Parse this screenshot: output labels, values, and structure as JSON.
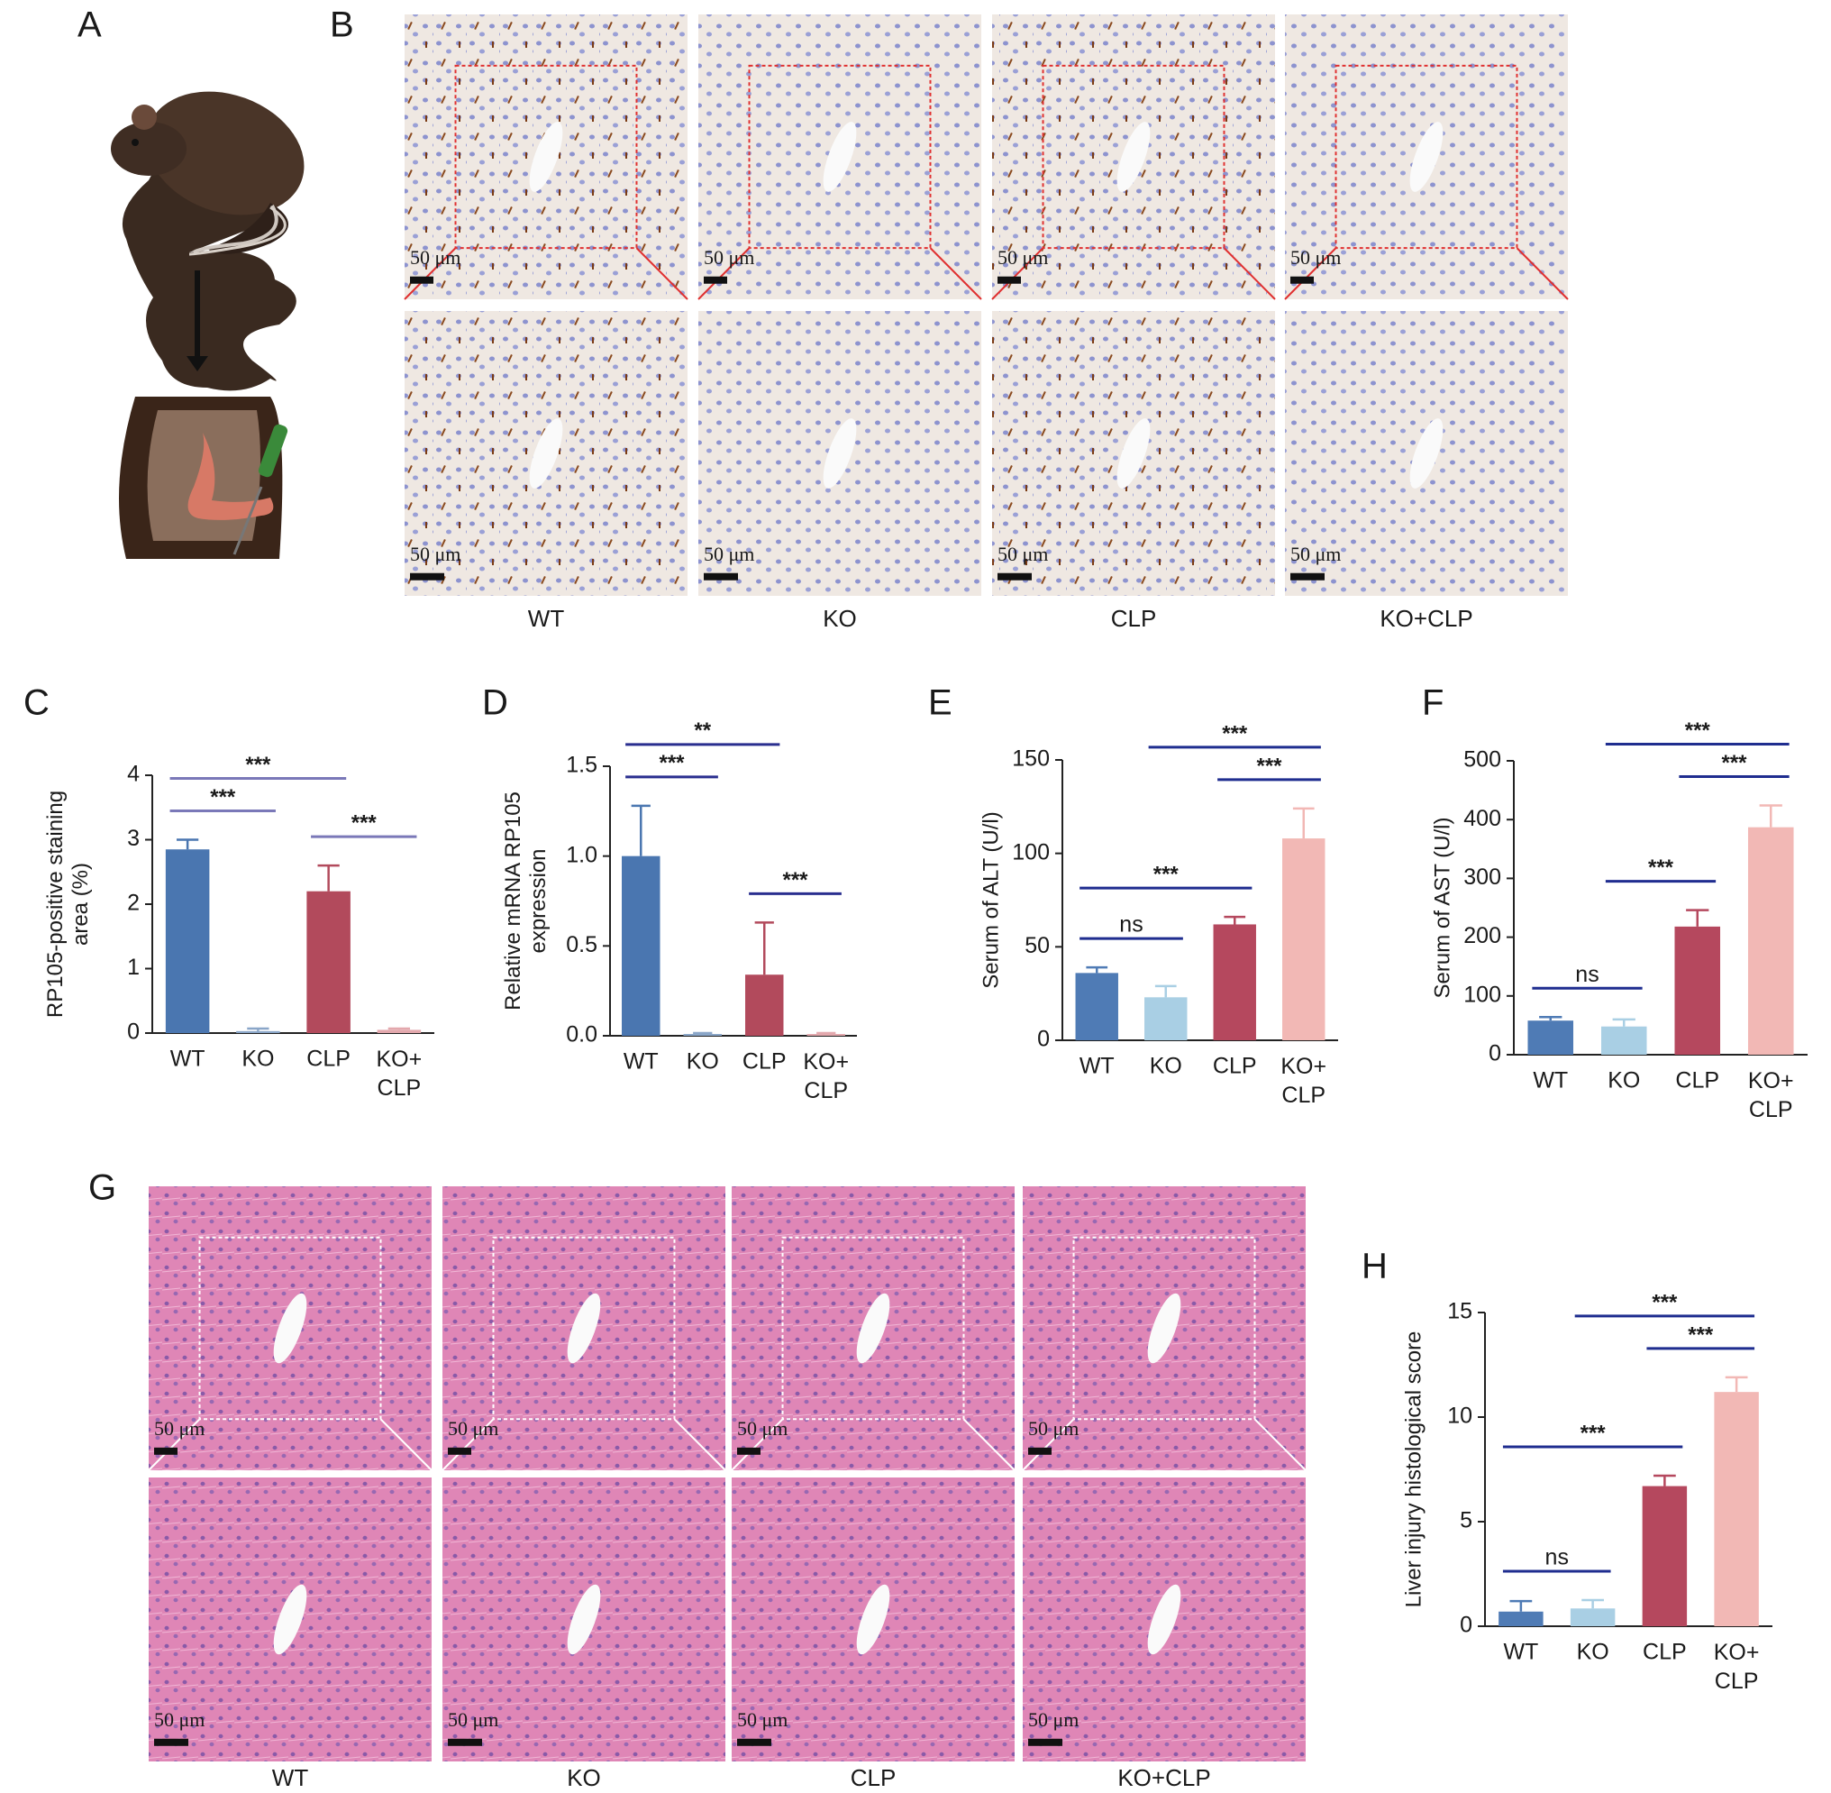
{
  "figure": {
    "panel_labels": [
      "A",
      "B",
      "G"
    ],
    "ihc_groups": [
      "WT",
      "KO",
      "CLP",
      "KO+CLP"
    ],
    "he_groups": [
      "WT",
      "KO",
      "CLP",
      "KO+CLP"
    ],
    "scale_bar": "50 μm"
  },
  "chart_data": [
    {
      "type": "bar",
      "panel": "C",
      "ylabel": "RP105-positive staining\narea (%)",
      "categories": [
        "WT",
        "KO",
        "CLP",
        "KO+\nCLP"
      ],
      "values": [
        2.85,
        0.03,
        2.2,
        0.05
      ],
      "errors": [
        0.15,
        0.04,
        0.4,
        0.02
      ],
      "colors": [
        "#4a76b0",
        "#8aa6c8",
        "#b24a5c",
        "#e3a8ad"
      ],
      "ylim": [
        0,
        4
      ],
      "yticks": [
        0,
        1,
        2,
        3,
        4
      ],
      "significance": [
        {
          "between": [
            0,
            1
          ],
          "label": "***"
        },
        {
          "between": [
            0,
            2
          ],
          "label": "***"
        },
        {
          "between": [
            2,
            3
          ],
          "label": "***"
        }
      ],
      "sig_color": "#7a78b8"
    },
    {
      "type": "bar",
      "panel": "D",
      "ylabel": "Relative mRNA RP105\nexpression",
      "categories": [
        "WT",
        "KO",
        "CLP",
        "KO+\nCLP"
      ],
      "values": [
        1.0,
        0.01,
        0.34,
        0.01
      ],
      "errors": [
        0.28,
        0.005,
        0.29,
        0.005
      ],
      "colors": [
        "#4a76b0",
        "#8aa6c8",
        "#b24a5c",
        "#e3a8ad"
      ],
      "ylim": [
        0,
        1.5
      ],
      "yticks": [
        {
          "value": 0,
          "label": "0.0"
        },
        {
          "value": 0.5,
          "label": "0.5"
        },
        {
          "value": 1,
          "label": "1.0"
        },
        {
          "value": 1.5,
          "label": "1.5"
        }
      ],
      "significance": [
        {
          "between": [
            0,
            1
          ],
          "label": "***"
        },
        {
          "between": [
            0,
            2
          ],
          "label": "**"
        },
        {
          "between": [
            2,
            3
          ],
          "label": "***"
        }
      ],
      "sig_color": "#2a2f8f"
    },
    {
      "type": "bar",
      "panel": "E",
      "ylabel": "Serum of ALT (U/l)",
      "categories": [
        "WT",
        "KO",
        "CLP",
        "KO+\nCLP"
      ],
      "values": [
        36,
        23,
        62,
        108
      ],
      "errors": [
        3,
        6,
        4,
        16
      ],
      "colors": [
        "#4f7bb5",
        "#a9cfe4",
        "#b5485e",
        "#f2b8b5"
      ],
      "ylim": [
        0,
        150
      ],
      "yticks": [
        0,
        50,
        100,
        150
      ],
      "significance": [
        {
          "between": [
            0,
            1
          ],
          "label": "ns"
        },
        {
          "between": [
            0,
            2
          ],
          "label": "***"
        },
        {
          "between": [
            2,
            3
          ],
          "label": "***"
        },
        {
          "between": [
            1,
            3
          ],
          "label": "***"
        }
      ],
      "sig_color": "#1f2d8f"
    },
    {
      "type": "bar",
      "panel": "F",
      "ylabel": "Serum of AST (U/l)",
      "categories": [
        "WT",
        "KO",
        "CLP",
        "KO+\nCLP"
      ],
      "values": [
        58,
        48,
        218,
        387
      ],
      "errors": [
        6,
        12,
        28,
        37
      ],
      "colors": [
        "#4f7bb5",
        "#a9cfe4",
        "#b5485e",
        "#f2b8b5"
      ],
      "ylim": [
        0,
        500
      ],
      "yticks": [
        0,
        100,
        200,
        300,
        400,
        500
      ],
      "significance": [
        {
          "between": [
            0,
            1
          ],
          "label": "ns"
        },
        {
          "between": [
            1,
            2
          ],
          "label": "***"
        },
        {
          "between": [
            2,
            3
          ],
          "label": "***"
        },
        {
          "between": [
            1,
            3
          ],
          "label": "***"
        }
      ],
      "sig_color": "#1f2d8f"
    },
    {
      "type": "bar",
      "panel": "H",
      "ylabel": "Liver injury histological score",
      "categories": [
        "WT",
        "KO",
        "CLP",
        "KO+\nCLP"
      ],
      "values": [
        0.7,
        0.85,
        6.7,
        11.2
      ],
      "errors": [
        0.5,
        0.4,
        0.5,
        0.7
      ],
      "colors": [
        "#4f7bb5",
        "#a9cfe4",
        "#b5485e",
        "#f2b8b5"
      ],
      "ylim": [
        0,
        15
      ],
      "yticks": [
        0,
        5,
        10,
        15
      ],
      "significance": [
        {
          "between": [
            0,
            1
          ],
          "label": "ns"
        },
        {
          "between": [
            0,
            2
          ],
          "label": "***"
        },
        {
          "between": [
            2,
            3
          ],
          "label": "***"
        },
        {
          "between": [
            1,
            3
          ],
          "label": "***"
        }
      ],
      "sig_color": "#1f2d8f"
    }
  ]
}
